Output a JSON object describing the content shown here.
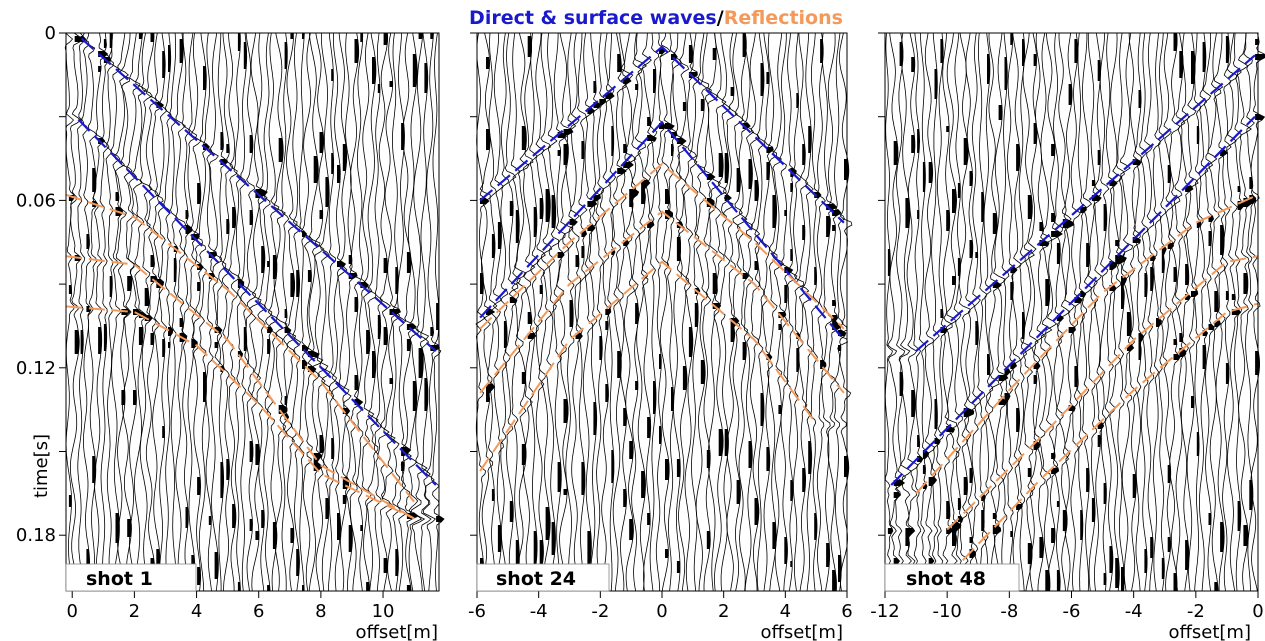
{
  "title": {
    "part1": "Direct & surface waves",
    "separator": "/",
    "part2": "Reflections",
    "color1": "#1a1acc",
    "color2": "#f39a5b"
  },
  "chart_data": [
    {
      "type": "line",
      "panel_label": "shot 1",
      "xlabel": "offset[m]",
      "ylabel": "time[s]",
      "xlim": [
        -0.2,
        11.8
      ],
      "ylim": [
        0.2,
        0
      ],
      "y_inverted": true,
      "xticks": [
        0,
        2,
        4,
        6,
        8,
        10
      ],
      "yticks": [
        0,
        0.06,
        0.12,
        0.18
      ],
      "ytick_labels": [
        "0",
        "0.06",
        "0.12",
        "0.18"
      ],
      "wiggle_traces": true,
      "series": [
        {
          "kind": "direct",
          "x": [
            0.3,
            11.7
          ],
          "y": [
            0.002,
            0.114
          ]
        },
        {
          "kind": "direct",
          "x": [
            0.2,
            11.7
          ],
          "y": [
            0.031,
            0.162
          ]
        },
        {
          "kind": "reflection",
          "x": [
            -0.2,
            2,
            5,
            8,
            11
          ],
          "y": [
            0.058,
            0.066,
            0.092,
            0.125,
            0.168
          ]
        },
        {
          "kind": "reflection",
          "x": [
            -0.2,
            2,
            5,
            8,
            11
          ],
          "y": [
            0.08,
            0.083,
            0.11,
            0.155,
            0.174
          ]
        },
        {
          "kind": "reflection",
          "x": [
            -0.2,
            2,
            4,
            6,
            8,
            11
          ],
          "y": [
            0.098,
            0.1,
            0.112,
            0.133,
            0.158,
            0.174
          ]
        }
      ]
    },
    {
      "type": "line",
      "panel_label": "shot 24",
      "xlabel": "offset[m]",
      "ylabel": "",
      "xlim": [
        -6,
        6
      ],
      "ylim": [
        0.2,
        0
      ],
      "y_inverted": true,
      "xticks": [
        -6,
        -4,
        -2,
        0,
        2,
        4,
        6
      ],
      "yticks": [
        0,
        0.06,
        0.12,
        0.18
      ],
      "wiggle_traces": true,
      "series": [
        {
          "kind": "direct",
          "x": [
            -5.9,
            0,
            5.9
          ],
          "y": [
            0.06,
            0.005,
            0.068
          ]
        },
        {
          "kind": "direct",
          "x": [
            -5.9,
            0,
            5.9
          ],
          "y": [
            0.102,
            0.032,
            0.11
          ]
        },
        {
          "kind": "reflection",
          "x": [
            -5.9,
            -3,
            0,
            3,
            5.9
          ],
          "y": [
            0.106,
            0.075,
            0.047,
            0.075,
            0.106
          ]
        },
        {
          "kind": "reflection",
          "x": [
            -5.9,
            -3,
            0,
            3,
            5.9
          ],
          "y": [
            0.129,
            0.09,
            0.064,
            0.09,
            0.129
          ]
        },
        {
          "kind": "reflection",
          "x": [
            -5.9,
            -3,
            0,
            3,
            5.0
          ],
          "y": [
            0.157,
            0.11,
            0.082,
            0.11,
            0.14
          ]
        }
      ]
    },
    {
      "type": "line",
      "panel_label": "shot 48",
      "xlabel": "offset[m]",
      "ylabel": "",
      "xlim": [
        -12,
        0
      ],
      "ylim": [
        0.2,
        0
      ],
      "y_inverted": true,
      "xticks": [
        -12,
        -10,
        -8,
        -6,
        -4,
        -2,
        0
      ],
      "wiggle_traces": true,
      "series": [
        {
          "kind": "direct",
          "x": [
            -11.0,
            -0.1
          ],
          "y": [
            0.114,
            0.008
          ]
        },
        {
          "kind": "direct",
          "x": [
            -11.8,
            -0.1
          ],
          "y": [
            0.162,
            0.03
          ]
        },
        {
          "kind": "reflection",
          "x": [
            -11.0,
            -8,
            -5,
            -2,
            0
          ],
          "y": [
            0.165,
            0.128,
            0.093,
            0.068,
            0.058
          ]
        },
        {
          "kind": "reflection",
          "x": [
            -10.0,
            -7,
            -4,
            -1,
            0
          ],
          "y": [
            0.178,
            0.145,
            0.11,
            0.082,
            0.08
          ]
        },
        {
          "kind": "reflection",
          "x": [
            -9.5,
            -7,
            -4,
            -1,
            0
          ],
          "y": [
            0.189,
            0.16,
            0.128,
            0.1,
            0.097
          ]
        }
      ]
    }
  ]
}
